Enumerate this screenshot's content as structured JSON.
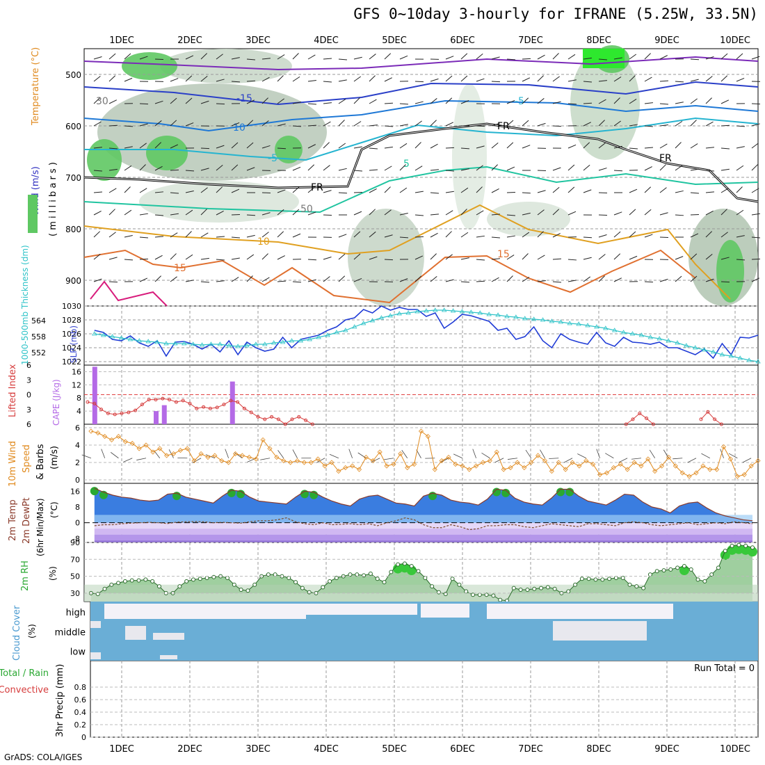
{
  "title": "GFS 0~10day 3-hourly for IFRANE (5.25W, 33.5N)",
  "footer": "GrADS: COLA/IGES",
  "run_total": "Run Total = 0",
  "colors": {
    "rh_green": "#5fc863",
    "rh_grey": "#9aa89a",
    "temp_line": "#1d4fd8",
    "thick_line": "#2ec3c8",
    "slp_line": "#1f3bd6",
    "li_line": "#d63c3c",
    "cape_bar": "#b46ae6",
    "wind_line": "#e08a1e",
    "temp_fill": "#3a7de0",
    "rh_fill": "#38c83a",
    "cloud_fill": "#6aaed6",
    "cloud_clear": "#f4f2f8"
  },
  "chart_data": [
    {
      "type": "heatmap",
      "name": "pressure-cross-section",
      "x_labels": [
        "1DEC",
        "2DEC",
        "3DEC",
        "4DEC",
        "5DEC",
        "6DEC",
        "7DEC",
        "8DEC",
        "9DEC",
        "10DEC"
      ],
      "y_ticks": [
        500,
        600,
        700,
        800,
        900
      ],
      "ylim": [
        450,
        950
      ],
      "ylabel": "( m i l l i b a r s )",
      "side_labels": [
        "Wind (m/s)",
        "Temperature (°C)",
        "RH (%)"
      ],
      "contour_labels": [
        "-15",
        "-10",
        "-5",
        "5",
        "10",
        "15",
        "FR",
        "30",
        "50"
      ]
    },
    {
      "type": "line",
      "name": "slp-thickness",
      "ylabel_left": "1000-500mb Thickness (dm)",
      "ylabel_right": "SLP (mb)",
      "left_ticks": [
        552,
        558,
        564
      ],
      "right_ticks": [
        1022,
        1024,
        1026,
        1028,
        1030
      ],
      "ylim_right": [
        1021.5,
        1030
      ],
      "series": [
        {
          "name": "SLP (mb)",
          "values": [
            1026.5,
            1026.2,
            1025.2,
            1025.0,
            1025.7,
            1024.7,
            1024.2,
            1025.0,
            1022.8,
            1024.8,
            1024.9,
            1024.5,
            1023.8,
            1024.5,
            1023.4,
            1025.0,
            1023.0,
            1024.8,
            1024.0,
            1023.5,
            1023.8,
            1025.5,
            1024.0,
            1025.2,
            1025.5,
            1025.8,
            1026.5,
            1027.0,
            1028.0,
            1028.3,
            1029.5,
            1029.0,
            1030.0,
            1029.4,
            1029.8,
            1029.5,
            1029.5,
            1028.5,
            1029.0,
            1026.8,
            1027.7,
            1028.8,
            1028.6,
            1028.2,
            1027.8,
            1026.5,
            1026.8,
            1025.2,
            1025.6,
            1027.0,
            1025.0,
            1024.0,
            1026.0,
            1025.2,
            1024.8,
            1024.5,
            1026.2,
            1024.7,
            1024.2,
            1025.5,
            1024.8,
            1024.7,
            1024.5,
            1024.8,
            1024.0,
            1024.0,
            1023.5,
            1023.0,
            1023.8,
            1022.5,
            1024.6,
            1023.0,
            1025.5,
            1025.4,
            1025.8
          ]
        },
        {
          "name": "1000-500mb Thickness (dm)",
          "values": [
            1026.0,
            1025.8,
            1025.6,
            1025.4,
            1025.2,
            1025.0,
            1024.9,
            1024.8,
            1024.6,
            1024.6,
            1024.6,
            1024.5,
            1024.4,
            1024.5,
            1024.5,
            1024.3,
            1024.2,
            1024.3,
            1024.5,
            1024.5,
            1024.7,
            1024.8,
            1025.0,
            1025.0,
            1025.2,
            1025.5,
            1025.8,
            1026.2,
            1026.5,
            1027.0,
            1027.5,
            1027.9,
            1028.3,
            1028.6,
            1028.9,
            1029.0,
            1029.2,
            1029.3,
            1029.4,
            1029.4,
            1029.3,
            1029.2,
            1029.1,
            1029.0,
            1028.8,
            1028.7,
            1028.5,
            1028.4,
            1028.2,
            1028.1,
            1028.0,
            1027.8,
            1027.7,
            1027.5,
            1027.4,
            1027.2,
            1027.0,
            1026.8,
            1026.5,
            1026.2,
            1026.0,
            1025.8,
            1025.5,
            1025.3,
            1025.0,
            1024.7,
            1024.3,
            1024.0,
            1023.7,
            1023.4,
            1023.0,
            1022.8,
            1022.5,
            1022.2,
            1022.0
          ]
        }
      ]
    },
    {
      "type": "bar",
      "name": "lifted-index-cape",
      "ylabel_left": "Lifted Index",
      "ylabel_right": "CAPE (J/kg)",
      "li_ticks": [
        -6,
        -3,
        0,
        3,
        6
      ],
      "cape_ticks": [
        4,
        8,
        12,
        16
      ],
      "cape_values": [
        [
          0.6,
          17.5
        ],
        [
          1.5,
          4
        ],
        [
          1.62,
          5.8
        ],
        [
          2.62,
          13
        ]
      ],
      "li_segments": [
        [
          [
            0.5,
            1.5
          ],
          [
            0.6,
            1.8
          ],
          [
            0.7,
            3.0
          ],
          [
            0.8,
            3.8
          ],
          [
            0.9,
            4.0
          ],
          [
            1.0,
            3.8
          ],
          [
            1.1,
            3.6
          ],
          [
            1.2,
            3.2
          ],
          [
            1.3,
            2.0
          ],
          [
            1.4,
            1.0
          ],
          [
            1.5,
            1.0
          ],
          [
            1.6,
            0.8
          ],
          [
            1.7,
            1.0
          ],
          [
            1.8,
            1.5
          ],
          [
            1.9,
            1.2
          ],
          [
            2.0,
            1.8
          ],
          [
            2.1,
            2.8
          ],
          [
            2.2,
            2.5
          ],
          [
            2.3,
            2.8
          ],
          [
            2.4,
            2.6
          ],
          [
            2.5,
            2.0
          ],
          [
            2.6,
            1.2
          ],
          [
            2.7,
            1.5
          ],
          [
            2.8,
            2.8
          ],
          [
            2.9,
            3.6
          ],
          [
            3.0,
            4.5
          ],
          [
            3.1,
            5.0
          ],
          [
            3.2,
            4.5
          ],
          [
            3.3,
            5.0
          ],
          [
            3.4,
            6.0
          ],
          [
            3.5,
            5.0
          ],
          [
            3.6,
            4.5
          ],
          [
            3.7,
            5.2
          ],
          [
            3.8,
            6.0
          ]
        ],
        [
          [
            8.4,
            6.0
          ],
          [
            8.5,
            5.0
          ],
          [
            8.6,
            3.8
          ],
          [
            8.7,
            4.8
          ],
          [
            8.8,
            6.0
          ]
        ],
        [
          [
            9.5,
            5.0
          ],
          [
            9.6,
            3.5
          ],
          [
            9.7,
            5.0
          ],
          [
            9.8,
            6.0
          ]
        ]
      ]
    },
    {
      "type": "line",
      "name": "wind-10m",
      "ylabel": "10m Wind Speed & Barbs (m/s)",
      "ylim": [
        0,
        6
      ],
      "y_ticks": [
        0,
        2,
        4,
        6
      ],
      "values": [
        5.6,
        5.4,
        5.0,
        4.6,
        5.0,
        4.4,
        4.2,
        3.6,
        4.0,
        3.2,
        3.6,
        2.8,
        3.0,
        3.4,
        3.6,
        2.2,
        3.0,
        2.6,
        2.8,
        2.2,
        2.0,
        3.0,
        2.8,
        2.6,
        2.4,
        4.6,
        3.6,
        2.6,
        2.2,
        2.0,
        2.2,
        2.0,
        2.0,
        2.4,
        1.6,
        2.0,
        1.0,
        1.4,
        1.6,
        1.2,
        2.6,
        2.2,
        3.2,
        1.6,
        1.8,
        3.0,
        1.4,
        1.8,
        5.6,
        5.0,
        1.2,
        2.2,
        2.6,
        1.8,
        1.6,
        1.2,
        1.6,
        2.0,
        2.2,
        3.2,
        1.2,
        1.4,
        2.0,
        1.4,
        2.0,
        2.8,
        2.2,
        1.0,
        2.0,
        1.2,
        2.0,
        1.6,
        2.2,
        1.8,
        0.6,
        0.8,
        1.4,
        1.8,
        1.2,
        2.0,
        1.6,
        2.4,
        1.0,
        1.6,
        2.6,
        1.6,
        0.8,
        0.4,
        0.8,
        1.6,
        1.2,
        1.2,
        3.8,
        2.4,
        0.4,
        0.6,
        1.6,
        2.2
      ]
    },
    {
      "type": "area",
      "name": "temp-dewpoint",
      "ylabel": "2m Temp 2m DewPt (6hr Min/Max) (°C)",
      "ylim": [
        -10,
        20
      ],
      "y_ticks": [
        -8,
        0,
        8,
        16
      ],
      "temp": [
        17.5,
        15.5,
        14.0,
        13.0,
        12.5,
        11.5,
        11.0,
        11.5,
        14.5,
        15.0,
        13.0,
        12.0,
        11.0,
        10.0,
        13.5,
        16.5,
        16.0,
        13.0,
        11.0,
        10.5,
        10.0,
        9.5,
        13.0,
        16.0,
        15.5,
        13.0,
        11.0,
        9.5,
        8.5,
        12.0,
        13.5,
        14.0,
        12.0,
        10.0,
        9.5,
        8.5,
        13.5,
        15.0,
        14.0,
        11.5,
        10.5,
        10.0,
        9.0,
        12.0,
        17.0,
        16.5,
        12.5,
        10.5,
        9.5,
        9.0,
        12.5,
        17.0,
        17.0,
        13.5,
        11.0,
        10.0,
        9.0,
        11.5,
        14.5,
        14.0,
        10.5,
        8.0,
        7.0,
        5.0,
        8.5,
        10.0,
        10.5,
        7.5,
        5.0,
        3.5,
        2.5,
        1.5,
        1.0
      ],
      "dewpoint": [
        -1.5,
        -1.0,
        -1.0,
        -0.5,
        -0.2,
        0.0,
        0.2,
        0.0,
        -0.4,
        0.3,
        0.5,
        0.6,
        0.5,
        0.0,
        0.2,
        0.0,
        -0.2,
        0.5,
        1.0,
        1.0,
        1.5,
        2.5,
        0.5,
        -0.5,
        -1.0,
        0.0,
        -1.0,
        -0.8,
        -0.5,
        -1.0,
        -0.5,
        -1.5,
        0.0,
        1.0,
        2.5,
        1.5,
        -1.0,
        -2.5,
        -2.5,
        -1.0,
        -2.0,
        -3.5,
        -3.0,
        -1.5,
        -1.5,
        -1.0,
        -1.0,
        -2.0,
        -2.5,
        -1.5,
        -0.5,
        -1.0,
        -1.5,
        -2.0,
        -0.5,
        -0.5,
        -1.0,
        -1.5,
        0.0,
        0.5,
        0.0,
        -1.0,
        -1.5,
        -1.0,
        -0.5,
        0.0,
        -1.0,
        -0.5,
        0.0,
        -0.5,
        0.5,
        0.0,
        -0.5
      ]
    },
    {
      "type": "area",
      "name": "rh-2m",
      "ylabel": "2m RH (%)",
      "ylim": [
        20,
        90
      ],
      "y_ticks": [
        30,
        50,
        70,
        90
      ],
      "values": [
        30,
        29,
        35,
        40,
        42,
        44,
        45,
        45,
        46,
        44,
        38,
        30,
        30,
        38,
        44,
        46,
        47,
        48,
        49,
        50,
        48,
        40,
        34,
        33,
        40,
        50,
        52,
        52,
        50,
        48,
        43,
        36,
        31,
        30,
        37,
        44,
        48,
        50,
        52,
        52,
        51,
        53,
        47,
        43,
        55,
        64,
        65,
        62,
        56,
        48,
        38,
        31,
        29,
        47,
        40,
        32,
        28,
        28,
        28,
        27,
        22,
        21,
        36,
        34,
        34,
        35,
        36,
        37,
        35,
        30,
        32,
        40,
        47,
        47,
        46,
        46,
        47,
        48,
        48,
        40,
        38,
        36,
        52,
        56,
        57,
        58,
        60,
        62,
        58,
        46,
        44,
        52,
        60,
        80,
        86,
        87,
        86,
        84
      ]
    },
    {
      "type": "heatmap",
      "name": "cloud-cover",
      "ylabel": "Cloud Cover (%)",
      "levels": [
        "high",
        "middle",
        "low"
      ]
    },
    {
      "type": "line",
      "name": "precip-3hr",
      "ylabel_left": "Total / Rain",
      "ylabel_left2": "Convective",
      "ylabel": "3hr Precip (mm)",
      "ylim": [
        0,
        1
      ],
      "y_ticks": [
        0,
        0.2,
        0.4,
        0.6,
        0.8
      ],
      "values": []
    }
  ]
}
